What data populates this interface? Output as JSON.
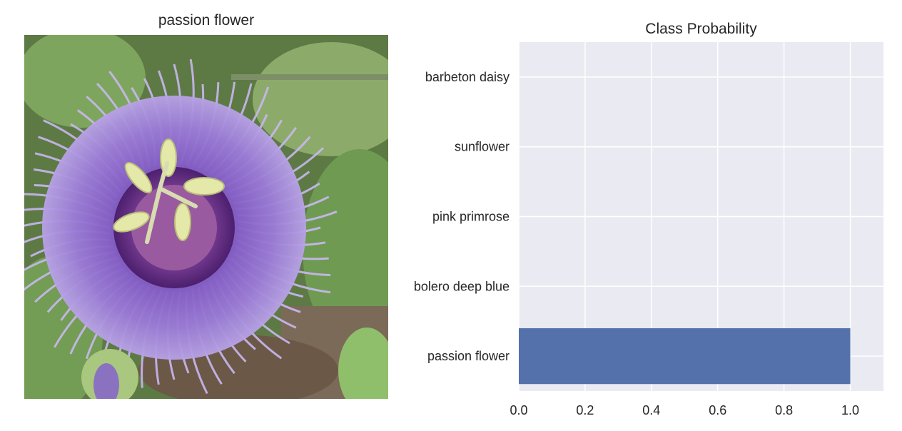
{
  "image_panel": {
    "title": "passion flower",
    "photo_subject": "passion flower"
  },
  "chart_data": {
    "type": "bar",
    "orientation": "horizontal",
    "title": "Class Probability",
    "xlabel": "",
    "ylabel": "",
    "categories": [
      "passion flower",
      "bolero deep blue",
      "pink primrose",
      "sunflower",
      "barbeton daisy"
    ],
    "values": [
      1.0,
      0.0,
      0.0,
      0.0,
      0.0
    ],
    "xlim": [
      0,
      1.1
    ],
    "xticks": [
      "0.0",
      "0.2",
      "0.4",
      "0.6",
      "0.8",
      "1.0"
    ],
    "grid": true,
    "bar_color": "#5471ab",
    "plot_background": "#eaeaf2"
  }
}
